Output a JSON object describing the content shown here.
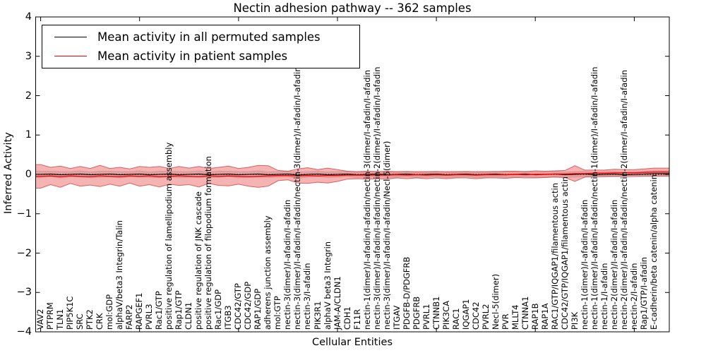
{
  "legend": {
    "entries": [
      {
        "label": "Mean activity in all permuted samples",
        "color": "#000000"
      },
      {
        "label": "Mean activity in patient samples",
        "color": "#ff0000"
      }
    ]
  },
  "chart_data": {
    "type": "line",
    "title": "Nectin adhesion pathway -- 362 samples",
    "xlabel": "Cellular Entities",
    "ylabel": "Inferred Activity",
    "ylim": [
      -4,
      4
    ],
    "ytick_labels": [
      "4",
      "3",
      "2",
      "1",
      "0",
      "−1",
      "−2",
      "−3",
      "−4"
    ],
    "xtick_positions": [
      0,
      10,
      20,
      30,
      40,
      50,
      60
    ],
    "grid": false,
    "legend_position": "upper left",
    "zero_line": 0,
    "categories": [
      "VAV2",
      "PTPRM",
      "TLN1",
      "PIP5K1C",
      "SRC",
      "PTK2",
      "CRK",
      "mol:GDP",
      "alphaV/beta3 Integrin/Talin",
      "FARP2",
      "RAPGEF1",
      "PVRL3",
      "Rac1/GTP",
      "positive regulation of lamellipodium assembly",
      "Rap1/GTP",
      "CLDN1",
      "positive regulation of JNK cascade",
      "positive regulation of filopodium formation",
      "Rac1/GDP",
      "ITGB3",
      "CDC42/GTP",
      "CDC42/GDP",
      "RAP1/GDP",
      "adherens junction assembly",
      "mol:GTP",
      "nectin-3(dimer)/I-afadin/I-afadin",
      "nectin-3(dimer)/I-afadin/I-afadin/nectin-3(dimer)/I-afadin/I-afadin",
      "nectin-3/I-afadin",
      "PIK3R1",
      "alphaV beta3 Integrin",
      "JAM-A/CLDN1",
      "CDH1",
      "F11R",
      "nectin-1(dimer)/I-afadin/I-afadin/nectin-3(dimer/I-afadin/I-afadin",
      "nectin-3(dimer)/I-afadin/I-afadin/nectin-2(dimer)/I-afadin/I-afadin",
      "nectin-3(dimer)/I-afadin/I-afadin/Necl-5(dimer)",
      "ITGAV",
      "PDGFB-D/PDGFRB",
      "PDGFRB",
      "PVRL1",
      "CTNNB1",
      "PIK3CA",
      "RAC1",
      "IQGAP1",
      "CDC42",
      "PVRL2",
      "Necl-5(dimer)",
      "PVR",
      "MLLT4",
      "CTNNA1",
      "RAP1B",
      "RAP1A",
      "RAC1/GTP/IQGAP1/filamentous actin",
      "CDC42/GTP/IQGAP1/filamentous actin",
      "PI3K",
      "nectin-1(dimer)/I-afadin/I-afadin",
      "nectin-1(dimer)/I-afadin/I-afadin/nectin-1(dimer)/I-afadin/I-afadin",
      "nectin-1/I-afadin",
      "nectin-2(dimer)/I-afadin/I-afadin",
      "nectin-2(dimer)/I-afadin/I-afadin/nectin-2(dimer/I-afadin/I-afadin",
      "nectin-2/I-afadin",
      "Rap1/GTP/I-afadin",
      "E-cadherin/beta catenin/alpha catenin"
    ],
    "series": [
      {
        "name": "Mean activity in all permuted samples",
        "color": "#000000",
        "band_color": "#c8c8c8",
        "values": [
          0.0,
          0.01,
          -0.01,
          0.0,
          0.01,
          -0.01,
          0.0,
          0.01,
          -0.01,
          0.0,
          0.01,
          -0.01,
          0.0,
          0.01,
          -0.01,
          0.0,
          0.01,
          -0.01,
          0.0,
          0.01,
          -0.01,
          0.0,
          0.01,
          -0.01,
          0.0,
          0.01,
          -0.02,
          0.0,
          0.01,
          -0.01,
          0.0,
          0.01,
          -0.01,
          0.0,
          0.01,
          -0.01,
          0.0,
          0.01,
          -0.01,
          0.0,
          0.01,
          -0.01,
          0.0,
          0.01,
          -0.01,
          0.0,
          0.01,
          -0.01,
          0.0,
          0.01,
          -0.01,
          0.0,
          0.01,
          -0.01,
          0.0,
          0.01,
          -0.01,
          0.0,
          0.01,
          -0.01,
          0.0,
          0.01,
          0.02
        ],
        "band_halfwidth": [
          0.08,
          0.07,
          0.08,
          0.07,
          0.08,
          0.07,
          0.08,
          0.07,
          0.08,
          0.07,
          0.08,
          0.07,
          0.08,
          0.07,
          0.08,
          0.07,
          0.08,
          0.07,
          0.08,
          0.07,
          0.08,
          0.07,
          0.08,
          0.07,
          0.07,
          0.07,
          0.08,
          0.07,
          0.07,
          0.07,
          0.07,
          0.07,
          0.07,
          0.07,
          0.07,
          0.07,
          0.07,
          0.07,
          0.07,
          0.07,
          0.07,
          0.07,
          0.07,
          0.07,
          0.07,
          0.07,
          0.07,
          0.07,
          0.07,
          0.07,
          0.07,
          0.07,
          0.07,
          0.07,
          0.07,
          0.07,
          0.07,
          0.07,
          0.07,
          0.07,
          0.07,
          0.07,
          0.08
        ]
      },
      {
        "name": "Mean activity in patient samples",
        "color": "#ff0000",
        "band_color": "#e84a4a",
        "values": [
          -0.05,
          -0.04,
          -0.06,
          -0.04,
          -0.05,
          -0.06,
          -0.04,
          -0.05,
          -0.06,
          -0.04,
          -0.05,
          -0.04,
          -0.06,
          -0.05,
          -0.04,
          -0.05,
          -0.06,
          -0.04,
          -0.05,
          -0.04,
          -0.05,
          -0.06,
          -0.05,
          -0.04,
          -0.03,
          -0.03,
          -0.04,
          -0.03,
          -0.04,
          -0.03,
          -0.03,
          -0.02,
          -0.02,
          -0.02,
          -0.02,
          -0.02,
          -0.01,
          -0.02,
          -0.01,
          -0.02,
          -0.01,
          -0.02,
          -0.01,
          -0.01,
          -0.02,
          -0.01,
          -0.01,
          -0.01,
          0.0,
          -0.01,
          0.0,
          0.0,
          0.01,
          0.01,
          0.02,
          0.02,
          0.03,
          0.03,
          0.04,
          0.04,
          0.04,
          0.05,
          0.06
        ],
        "band_halfwidth": [
          0.3,
          0.22,
          0.27,
          0.19,
          0.25,
          0.21,
          0.27,
          0.2,
          0.24,
          0.18,
          0.25,
          0.22,
          0.26,
          0.2,
          0.24,
          0.21,
          0.26,
          0.19,
          0.23,
          0.25,
          0.2,
          0.24,
          0.28,
          0.26,
          0.13,
          0.11,
          0.18,
          0.2,
          0.16,
          0.19,
          0.15,
          0.1,
          0.09,
          0.1,
          0.09,
          0.1,
          0.08,
          0.09,
          0.08,
          0.09,
          0.08,
          0.09,
          0.08,
          0.08,
          0.09,
          0.08,
          0.08,
          0.09,
          0.08,
          0.08,
          0.09,
          0.08,
          0.08,
          0.09,
          0.2,
          0.09,
          0.08,
          0.08,
          0.09,
          0.08,
          0.08,
          0.09,
          0.1
        ]
      }
    ]
  }
}
